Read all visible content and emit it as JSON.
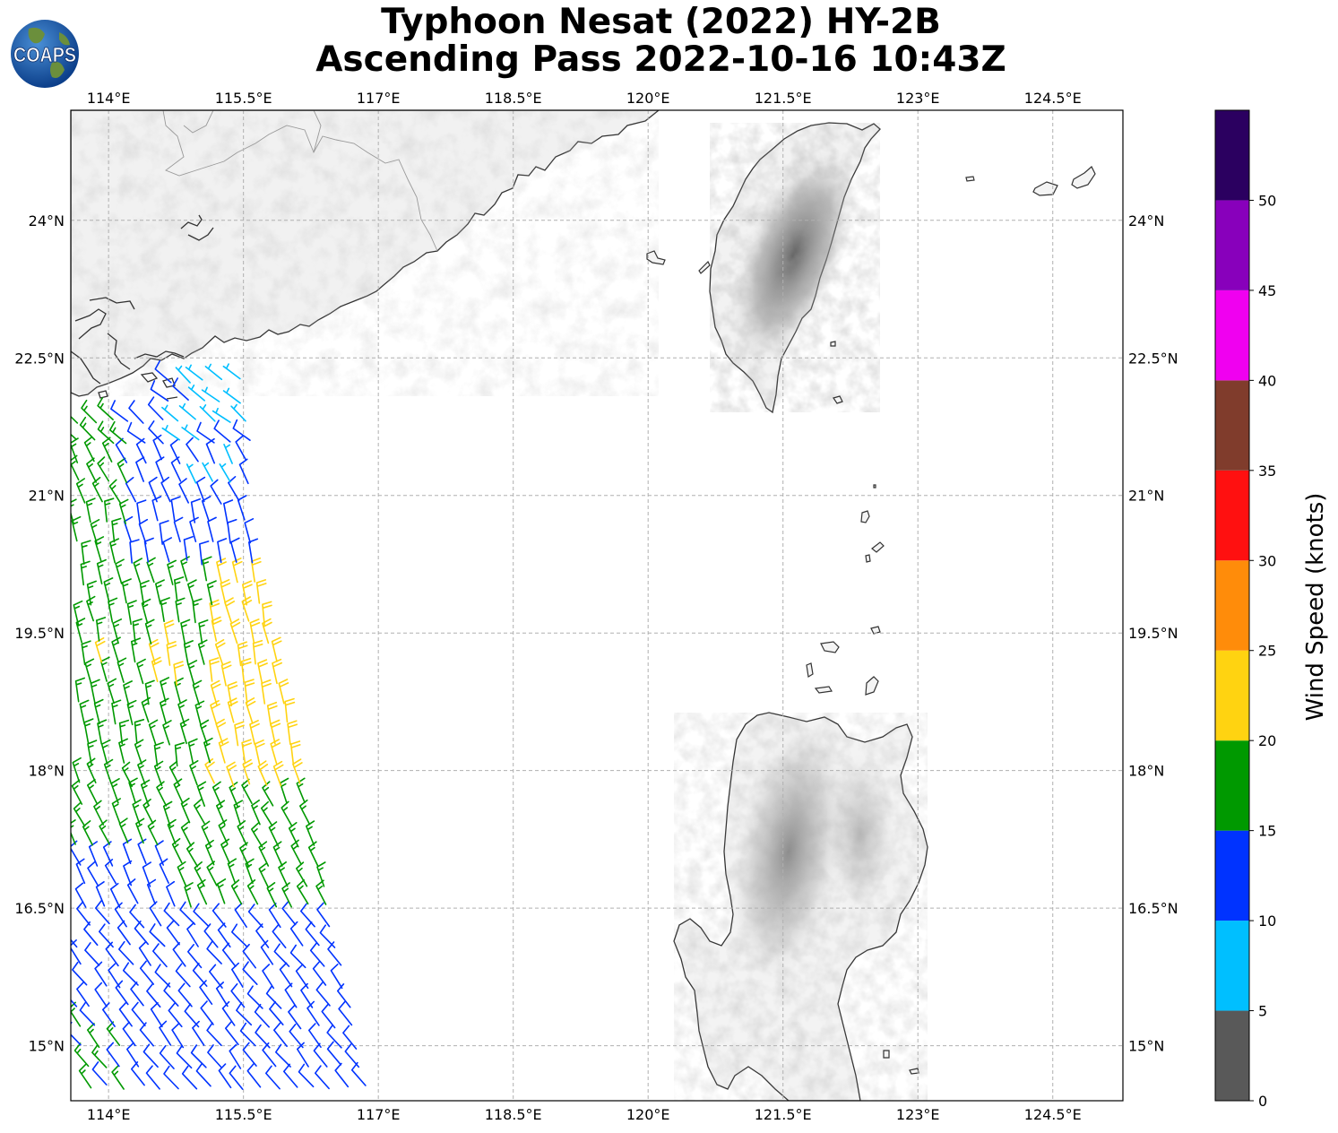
{
  "title": {
    "line1": "Typhoon Nesat (2022) HY-2B",
    "line2": "Ascending Pass 2022-10-16 10:43Z"
  },
  "logo": {
    "text": "COAPS",
    "icon": "globe-icon"
  },
  "map": {
    "lon_ticks": [
      "114°E",
      "115.5°E",
      "117°E",
      "118.5°E",
      "120°E",
      "121.5°E",
      "123°E",
      "124.5°E"
    ],
    "lon_values": [
      114,
      115.5,
      117,
      118.5,
      120,
      121.5,
      123,
      124.5
    ],
    "lat_ticks": [
      "24°N",
      "22.5°N",
      "21°N",
      "19.5°N",
      "18°N",
      "16.5°N",
      "15°N"
    ],
    "lat_values": [
      24,
      22.5,
      21,
      19.5,
      18,
      16.5,
      15
    ],
    "lon_range": [
      113.58,
      125.28
    ],
    "lat_range": [
      14.4,
      25.2
    ],
    "land_color": "#f0f0f0",
    "terrain_color": "#777777",
    "coastline_color": "#333333"
  },
  "colorbar": {
    "label": "Wind Speed (knots)",
    "ticks": [
      "0",
      "5",
      "10",
      "15",
      "20",
      "25",
      "30",
      "35",
      "40",
      "45",
      "50"
    ],
    "bins": [
      {
        "min": 0,
        "max": 5,
        "color": "#595959"
      },
      {
        "min": 5,
        "max": 10,
        "color": "#00bfff"
      },
      {
        "min": 10,
        "max": 15,
        "color": "#0033ff"
      },
      {
        "min": 15,
        "max": 20,
        "color": "#009900"
      },
      {
        "min": 20,
        "max": 25,
        "color": "#ffd311"
      },
      {
        "min": 25,
        "max": 30,
        "color": "#ff8c0a"
      },
      {
        "min": 30,
        "max": 35,
        "color": "#ff1010"
      },
      {
        "min": 35,
        "max": 40,
        "color": "#803c2c"
      },
      {
        "min": 40,
        "max": 45,
        "color": "#f000f0"
      },
      {
        "min": 45,
        "max": 50,
        "color": "#8800bb"
      },
      {
        "min": 50,
        "max": 55,
        "color": "#2b0060"
      }
    ]
  }
}
